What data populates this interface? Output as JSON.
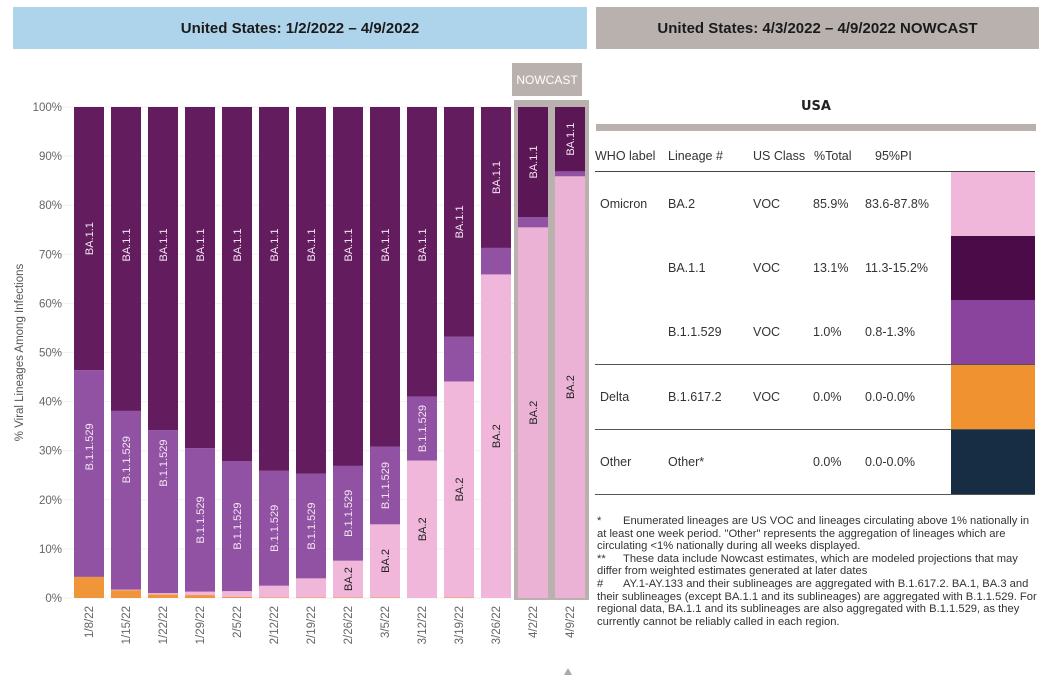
{
  "left_header": {
    "title": "United States: 1/2/2022 – 4/9/2022"
  },
  "right_header": {
    "title": "United States: 4/3/2022 – 4/9/2022 NOWCAST"
  },
  "nowcast_tag": "NOWCAST",
  "colors": {
    "BA.2": "#f0b7da",
    "BA.2_nowcast": "#ebb2d6",
    "BA.1.1": "#631d5f",
    "BA.1.1_nowcast": "#5a1655",
    "B.1.1.529": "#9152a3",
    "B.1.617.2": "#f0953a",
    "Other": "#172d44",
    "nowcast_frame": "#b8b1ae"
  },
  "chart_data": {
    "type": "bar",
    "stacked": true,
    "title": "United States: 1/2/2022 – 4/9/2022",
    "xlabel": "",
    "ylabel": "% Viral Lineages Among Infections",
    "ylim": [
      0,
      100
    ],
    "yticks": [
      "0%",
      "10%",
      "20%",
      "30%",
      "40%",
      "50%",
      "60%",
      "70%",
      "80%",
      "90%",
      "100%"
    ],
    "grid": true,
    "categories": [
      "1/8/22",
      "1/15/22",
      "1/22/22",
      "1/29/22",
      "2/5/22",
      "2/12/22",
      "2/19/22",
      "2/26/22",
      "3/5/22",
      "3/12/22",
      "3/19/22",
      "3/26/22",
      "4/2/22",
      "4/9/22"
    ],
    "nowcast_categories": [
      "4/2/22",
      "4/9/22"
    ],
    "series": [
      {
        "name": "B.1.617.2",
        "values": [
          4.3,
          1.6,
          0.7,
          0.6,
          0.2,
          0.1,
          0.1,
          0.1,
          0.1,
          0.0,
          0.1,
          0.0,
          0.0,
          0.0
        ]
      },
      {
        "name": "BA.2",
        "values": [
          0.0,
          0.1,
          0.3,
          0.7,
          1.2,
          2.4,
          3.9,
          7.5,
          14.9,
          28.0,
          44.0,
          65.9,
          75.5,
          85.9
        ]
      },
      {
        "name": "B.1.1.529",
        "values": [
          42.1,
          36.4,
          33.2,
          29.2,
          26.5,
          23.4,
          21.3,
          19.3,
          15.8,
          13.0,
          9.1,
          5.4,
          2.1,
          1.0
        ]
      },
      {
        "name": "BA.1.1",
        "values": [
          53.6,
          61.9,
          65.8,
          69.5,
          72.1,
          74.1,
          74.7,
          73.1,
          69.2,
          59.0,
          46.8,
          28.7,
          22.4,
          13.1
        ]
      }
    ],
    "segment_labels": [
      {
        "bar": "1/8/22",
        "labels": [
          "B.1.1.529",
          "BA.1.1"
        ]
      },
      {
        "bar": "1/15/22",
        "labels": [
          "B.1.1.529",
          "BA.1.1"
        ]
      },
      {
        "bar": "1/22/22",
        "labels": [
          "B.1.1.529",
          "BA.1.1"
        ]
      },
      {
        "bar": "1/29/22",
        "labels": [
          "B.1.1.529",
          "BA.1.1"
        ]
      },
      {
        "bar": "2/5/22",
        "labels": [
          "B.1.1.529",
          "BA.1.1"
        ]
      },
      {
        "bar": "2/12/22",
        "labels": [
          "B.1.1.529",
          "BA.1.1"
        ]
      },
      {
        "bar": "2/19/22",
        "labels": [
          "B.1.1.529",
          "BA.1.1"
        ]
      },
      {
        "bar": "2/26/22",
        "labels": [
          "BA.2",
          "B.1.1.529",
          "BA.1.1"
        ]
      },
      {
        "bar": "3/5/22",
        "labels": [
          "BA.2",
          "B.1.1.529",
          "BA.1.1"
        ]
      },
      {
        "bar": "3/12/22",
        "labels": [
          "BA.2",
          "B.1.1.529",
          "BA.1.1"
        ]
      },
      {
        "bar": "3/19/22",
        "labels": [
          "BA.2",
          "BA.1.1"
        ]
      },
      {
        "bar": "3/26/22",
        "labels": [
          "BA.2",
          "BA.1.1"
        ]
      },
      {
        "bar": "4/2/22",
        "labels": [
          "BA.2",
          "BA.1.1"
        ]
      },
      {
        "bar": "4/9/22",
        "labels": [
          "BA.2",
          "BA.1.1"
        ]
      }
    ]
  },
  "nowcast_table": {
    "region_title": "USA",
    "headers": [
      "WHO label",
      "Lineage #",
      "US Class",
      "%Total",
      "95%PI"
    ],
    "groups": [
      {
        "who": "Omicron",
        "rows": [
          {
            "lineage": "BA.2",
            "class": "VOC",
            "total": "85.9%",
            "pi": "83.6-87.8%",
            "color": "#f0b7da"
          },
          {
            "lineage": "BA.1.1",
            "class": "VOC",
            "total": "13.1%",
            "pi": "11.3-15.2%",
            "color": "#4b0a48"
          },
          {
            "lineage": "B.1.1.529",
            "class": "VOC",
            "total": "1.0%",
            "pi": "0.8-1.3%",
            "color": "#8a449d"
          }
        ]
      },
      {
        "who": "Delta",
        "rows": [
          {
            "lineage": "B.1.617.2",
            "class": "VOC",
            "total": "0.0%",
            "pi": "0.0-0.0%",
            "color": "#f0922f"
          }
        ]
      },
      {
        "who": "Other",
        "rows": [
          {
            "lineage": "Other*",
            "class": "",
            "total": "0.0%",
            "pi": "0.0-0.0%",
            "color": "#172d44"
          }
        ]
      }
    ]
  },
  "footnotes": [
    {
      "mark": "*",
      "text": "Enumerated lineages are US VOC and lineages circulating above 1% nationally in at least one week period. \"Other\" represents the aggregation of lineages which are circulating <1% nationally during all weeks displayed."
    },
    {
      "mark": "**",
      "text": "These data include Nowcast estimates, which are modeled projections that may differ from weighted estimates generated at later dates"
    },
    {
      "mark": "#",
      "text": "AY.1-AY.133 and their sublineages are aggregated with B.1.617.2. BA.1, BA.3 and their sublineages (except BA.1.1 and its sublineages) are aggregated with B.1.1.529. For regional data, BA.1.1 and its sublineages are also aggregated with B.1.1.529, as they currently cannot be reliably called in each region."
    }
  ]
}
